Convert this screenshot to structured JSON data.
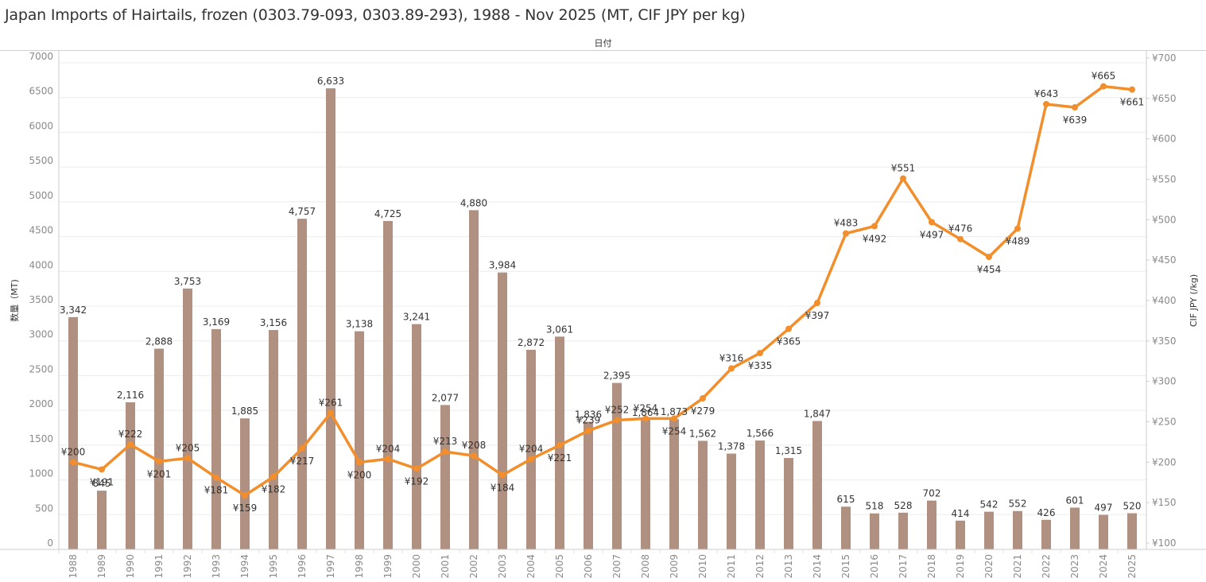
{
  "chart_data": {
    "type": "bar+line",
    "title": "Japan Imports of Hairtails, frozen (0303.79-093, 0303.89-293), 1988 - Nov 2025 (MT, CIF JPY per kg)",
    "x_header": "日付",
    "xlabel": "",
    "ylabel_left": "数量（MT)",
    "ylabel_right": "CIF JPY (/kg)",
    "ylim_left": [
      0,
      7000
    ],
    "ylim_right": [
      100,
      700
    ],
    "yticks_left": [
      "0",
      "500",
      "1000",
      "1500",
      "2000",
      "2500",
      "3000",
      "3500",
      "4000",
      "4500",
      "5000",
      "5500",
      "6000",
      "6500",
      "7000"
    ],
    "yticks_right": [
      "¥100",
      "¥150",
      "¥200",
      "¥250",
      "¥300",
      "¥350",
      "¥400",
      "¥450",
      "¥500",
      "¥550",
      "¥600",
      "¥650",
      "¥700"
    ],
    "grid": true,
    "colors": {
      "bar": "#b09080",
      "line": "#f28e2b"
    },
    "categories": [
      "1988",
      "1989",
      "1990",
      "1991",
      "1992",
      "1993",
      "1994",
      "1995",
      "1996",
      "1997",
      "1998",
      "1999",
      "2000",
      "2001",
      "2002",
      "2003",
      "2004",
      "2005",
      "2006",
      "2007",
      "2008",
      "2009",
      "2010",
      "2011",
      "2012",
      "2013",
      "2014",
      "2015",
      "2016",
      "2017",
      "2018",
      "2019",
      "2020",
      "2021",
      "2022",
      "2023",
      "2024",
      "2025"
    ],
    "series": [
      {
        "name": "数量（MT)",
        "type": "bar",
        "axis": "left",
        "values": [
          3342,
          845,
          2116,
          2888,
          3753,
          3169,
          1885,
          3156,
          4757,
          6633,
          3138,
          4725,
          3241,
          2077,
          4880,
          3984,
          2872,
          3061,
          1836,
          2395,
          1864,
          1873,
          1562,
          1378,
          1566,
          1315,
          1847,
          615,
          518,
          528,
          702,
          414,
          542,
          552,
          426,
          601,
          497,
          520
        ],
        "labels": [
          "3,342",
          "845",
          "2,116",
          "2,888",
          "3,753",
          "3,169",
          "1,885",
          "3,156",
          "4,757",
          "6,633",
          "3,138",
          "4,725",
          "3,241",
          "2,077",
          "4,880",
          "3,984",
          "2,872",
          "3,061",
          "1,836",
          "2,395",
          "1,864",
          "1,873",
          "1,562",
          "1,378",
          "1,566",
          "1,315",
          "1,847",
          "615",
          "518",
          "528",
          "702",
          "414",
          "542",
          "552",
          "426",
          "601",
          "497",
          "520"
        ]
      },
      {
        "name": "CIF JPY (/kg)",
        "type": "line",
        "axis": "right",
        "values": [
          200,
          191,
          222,
          201,
          205,
          181,
          159,
          182,
          217,
          261,
          200,
          204,
          192,
          213,
          208,
          184,
          204,
          221,
          239,
          252,
          254,
          254,
          279,
          316,
          335,
          365,
          397,
          483,
          492,
          551,
          497,
          476,
          454,
          489,
          643,
          639,
          665,
          661
        ],
        "labels": [
          "¥200",
          "¥191",
          "¥222",
          "¥201",
          "¥205",
          "¥181",
          "¥159",
          "¥182",
          "¥217",
          "¥261",
          "¥200",
          "¥204",
          "¥192",
          "¥213",
          "¥208",
          "¥184",
          "¥204",
          "¥221",
          "¥239",
          "¥252",
          "¥254",
          "¥254",
          "¥279",
          "¥316",
          "¥335",
          "¥365",
          "¥397",
          "¥483",
          "¥492",
          "¥551",
          "¥497",
          "¥476",
          "¥454",
          "¥489",
          "¥643",
          "¥639",
          "¥665",
          "¥661"
        ],
        "label_pos": [
          "above",
          "below",
          "above",
          "below",
          "above",
          "below",
          "below",
          "below",
          "below",
          "above",
          "below",
          "above",
          "below",
          "above",
          "above",
          "below",
          "above",
          "below",
          "above",
          "above",
          "above",
          "below",
          "below",
          "above",
          "below",
          "below",
          "below",
          "above",
          "below",
          "above",
          "below",
          "above",
          "below",
          "below",
          "above",
          "below",
          "above",
          "below"
        ]
      }
    ]
  }
}
